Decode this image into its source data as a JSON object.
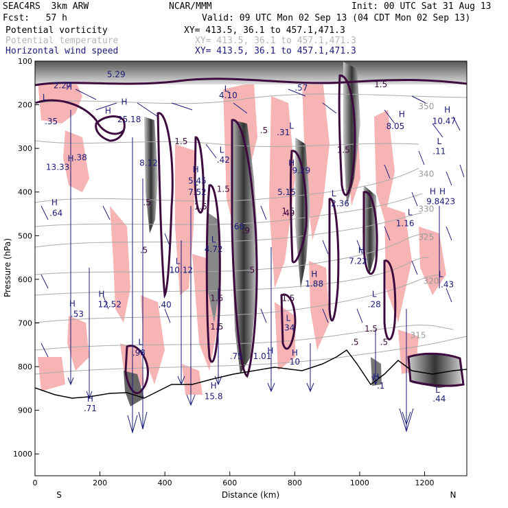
{
  "header": {
    "model": "SEAC4RS  3km ARW",
    "org": "NCAR/MMM",
    "init": "Init: 00 UTC Sat 31 Aug 13",
    "fcst": "Fcst:   57 h",
    "valid": "Valid: 09 UTC Mon 02 Sep 13 (04 CDT Mon 02 Sep 13)",
    "fields": [
      {
        "name": "Potential vorticity",
        "xy": "XY= 413.5, 36.1 to 457.1,471.3",
        "color": "#000000"
      },
      {
        "name": "Potential temperature",
        "xy": "XY= 413.5, 36.1 to 457.1,471.3",
        "color": "#b5b5b5"
      },
      {
        "name": "Horizontal wind speed",
        "xy": "XY= 413.5, 36.1 to 457.1,471.3",
        "color": "#1a1a7a"
      }
    ]
  },
  "chart_data": {
    "type": "cross-section",
    "xlabel": "Distance (km)",
    "ylabel": "Pressure (hPa)",
    "xlim": [
      0,
      1330
    ],
    "ylim": [
      1050,
      100
    ],
    "x_ticks": [
      "0",
      "200",
      "400",
      "600",
      "800",
      "1000",
      "1200"
    ],
    "y_ticks": [
      "100",
      "200",
      "300",
      "400",
      "500",
      "600",
      "700",
      "800",
      "900",
      "1000"
    ],
    "direction_labels": {
      "left": "S",
      "right": "N"
    },
    "theta_labels": [
      {
        "text": "350",
        "x": 1205,
        "p": 210
      },
      {
        "text": "340",
        "x": 1205,
        "p": 365
      },
      {
        "text": "330",
        "x": 1205,
        "p": 445
      },
      {
        "text": "325",
        "x": 1205,
        "p": 510
      },
      {
        "text": "320",
        "x": 1220,
        "p": 610
      },
      {
        "text": "315",
        "x": 1180,
        "p": 735
      }
    ],
    "pv_labels": [
      {
        "text": ".5",
        "x": 705,
        "p": 265
      },
      {
        "text": "1.5",
        "x": 450,
        "p": 290
      },
      {
        "text": "1.5",
        "x": 950,
        "p": 310
      },
      {
        "text": "1.5",
        "x": 580,
        "p": 400
      },
      {
        "text": "1.5",
        "x": 510,
        "p": 440
      },
      {
        "text": "1.5",
        "x": 1065,
        "p": 160
      },
      {
        "text": "1.5",
        "x": 780,
        "p": 450
      },
      {
        "text": ".5",
        "x": 345,
        "p": 430
      },
      {
        "text": ".5",
        "x": 335,
        "p": 540
      },
      {
        "text": "1.5",
        "x": 560,
        "p": 650
      },
      {
        "text": "1.5",
        "x": 560,
        "p": 715
      },
      {
        "text": "1.5",
        "x": 780,
        "p": 650
      },
      {
        "text": ".5",
        "x": 665,
        "p": 585
      },
      {
        "text": ".9",
        "x": 650,
        "p": 495
      },
      {
        "text": ".49",
        "x": 780,
        "p": 455
      },
      {
        "text": "1.5",
        "x": 1035,
        "p": 720
      },
      {
        "text": ".5",
        "x": 985,
        "p": 750
      },
      {
        "text": ".5",
        "x": 1075,
        "p": 750
      }
    ],
    "wind_labels": [
      {
        "text": "5.29",
        "x": 250,
        "p": 137
      },
      {
        "text": "2.27",
        "x": 85,
        "p": 162
      },
      {
        "text": "4.10",
        "x": 595,
        "p": 185
      },
      {
        "text": ".57",
        "x": 820,
        "p": 168
      },
      {
        "text": ".35",
        "x": 50,
        "p": 245
      },
      {
        "text": "25.18",
        "x": 290,
        "p": 240
      },
      {
        "text": "8.05",
        "x": 1110,
        "p": 256
      },
      {
        "text": "10.47",
        "x": 1260,
        "p": 244
      },
      {
        "text": ".38",
        "x": 140,
        "p": 327
      },
      {
        "text": "13.33",
        "x": 70,
        "p": 349
      },
      {
        "text": "8.12",
        "x": 350,
        "p": 340
      },
      {
        "text": ".42",
        "x": 580,
        "p": 333
      },
      {
        "text": "9.29",
        "x": 820,
        "p": 357
      },
      {
        "text": ".31",
        "x": 765,
        "p": 270
      },
      {
        "text": ".11",
        "x": 1245,
        "p": 313
      },
      {
        "text": "5.45",
        "x": 500,
        "p": 381
      },
      {
        "text": "7.52",
        "x": 500,
        "p": 407
      },
      {
        "text": "5.15",
        "x": 775,
        "p": 407
      },
      {
        "text": "9.8423",
        "x": 1250,
        "p": 428
      },
      {
        "text": ".64",
        "x": 65,
        "p": 455
      },
      {
        "text": "2.36",
        "x": 940,
        "p": 433
      },
      {
        "text": "1.16",
        "x": 1140,
        "p": 478
      },
      {
        "text": "4.72",
        "x": 550,
        "p": 537
      },
      {
        "text": ".68",
        "x": 625,
        "p": 485
      },
      {
        "text": "7.22",
        "x": 995,
        "p": 565
      },
      {
        "text": "10.12",
        "x": 450,
        "p": 585
      },
      {
        "text": "1.88",
        "x": 860,
        "p": 617
      },
      {
        "text": ".43",
        "x": 1270,
        "p": 618
      },
      {
        "text": ".40",
        "x": 400,
        "p": 665
      },
      {
        "text": ".53",
        "x": 130,
        "p": 686
      },
      {
        "text": "12.52",
        "x": 230,
        "p": 664
      },
      {
        "text": ".28",
        "x": 1045,
        "p": 664
      },
      {
        "text": ".34",
        "x": 780,
        "p": 717
      },
      {
        "text": ".98",
        "x": 320,
        "p": 775
      },
      {
        "text": ".75",
        "x": 620,
        "p": 783
      },
      {
        "text": "1.01",
        "x": 700,
        "p": 783
      },
      {
        "text": "10",
        "x": 800,
        "p": 795
      },
      {
        "text": "15.8",
        "x": 550,
        "p": 875
      },
      {
        "text": ".1",
        "x": 1065,
        "p": 850
      },
      {
        "text": ".44",
        "x": 1245,
        "p": 880
      },
      {
        "text": ".71",
        "x": 170,
        "p": 902
      }
    ],
    "markers": [
      {
        "text": "L",
        "x": 30,
        "p": 190
      },
      {
        "text": "H",
        "x": 275,
        "p": 200
      },
      {
        "text": "H",
        "x": 225,
        "p": 220
      },
      {
        "text": "L",
        "x": 590,
        "p": 170
      },
      {
        "text": "H",
        "x": 1130,
        "p": 228
      },
      {
        "text": "H",
        "x": 1270,
        "p": 218
      },
      {
        "text": "L",
        "x": 1245,
        "p": 290
      },
      {
        "text": "H",
        "x": 105,
        "p": 165
      },
      {
        "text": "H",
        "x": 110,
        "p": 330
      },
      {
        "text": "L",
        "x": 575,
        "p": 310
      },
      {
        "text": "L",
        "x": 790,
        "p": 255
      },
      {
        "text": "H",
        "x": 790,
        "p": 340
      },
      {
        "text": "H",
        "x": 495,
        "p": 355
      },
      {
        "text": "L",
        "x": 495,
        "p": 385
      },
      {
        "text": "H",
        "x": 1225,
        "p": 405
      },
      {
        "text": "H",
        "x": 1255,
        "p": 405
      },
      {
        "text": "L",
        "x": 920,
        "p": 410
      },
      {
        "text": "L",
        "x": 1155,
        "p": 453
      },
      {
        "text": "H",
        "x": 60,
        "p": 430
      },
      {
        "text": "L",
        "x": 550,
        "p": 515
      },
      {
        "text": "H",
        "x": 1005,
        "p": 540
      },
      {
        "text": "L",
        "x": 440,
        "p": 565
      },
      {
        "text": "H",
        "x": 860,
        "p": 595
      },
      {
        "text": "L",
        "x": 1250,
        "p": 595
      },
      {
        "text": "H",
        "x": 205,
        "p": 640
      },
      {
        "text": "H",
        "x": 115,
        "p": 662
      },
      {
        "text": "L",
        "x": 1045,
        "p": 640
      },
      {
        "text": "L",
        "x": 780,
        "p": 695
      },
      {
        "text": "L",
        "x": 325,
        "p": 750
      },
      {
        "text": "H",
        "x": 725,
        "p": 770
      },
      {
        "text": "H",
        "x": 800,
        "p": 775
      },
      {
        "text": "H",
        "x": 550,
        "p": 850
      },
      {
        "text": "H",
        "x": 1050,
        "p": 830
      },
      {
        "text": "L",
        "x": 1240,
        "p": 860
      },
      {
        "text": "H",
        "x": 170,
        "p": 880
      }
    ]
  }
}
